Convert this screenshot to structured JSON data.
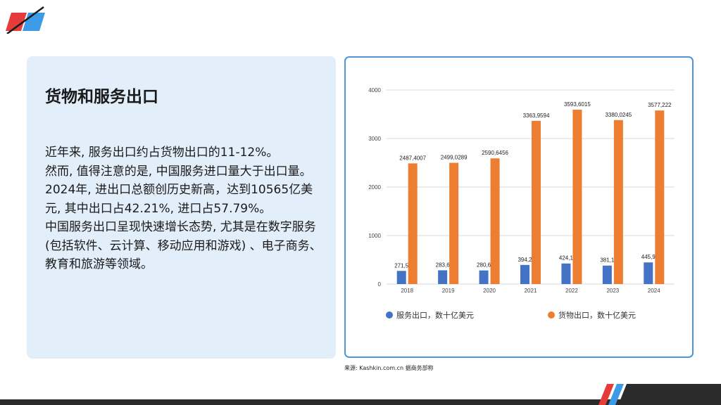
{
  "panel": {
    "title": "货物和服务出口",
    "paragraphs": [
      "近年来, 服务出口约占货物出口的11-12%。",
      "然而, 值得注意的是, 中国服务进口量大于出口量。2024年, 进出口总额创历史新高，达到10565亿美元, 其中出口占42.21%, 进口占57.79%。",
      "中国服务出口呈现快速增长态势, 尤其是在数字服务 (包括软件、云计算、移动应用和游戏) 、电子商务、教育和旅游等领域。"
    ]
  },
  "source": "来源: Kashkin.com.cn 据商务部称",
  "colors": {
    "services": "#4472c4",
    "goods": "#ed7d31",
    "panel_bg": "#e3eefb",
    "chart_border": "#4b95d8"
  },
  "chart_data": {
    "type": "bar",
    "title": "",
    "xlabel": "",
    "ylabel": "",
    "categories": [
      "2018",
      "2019",
      "2020",
      "2021",
      "2022",
      "2023",
      "2024"
    ],
    "ylim": [
      0,
      4000
    ],
    "yticks": [
      0,
      1000,
      2000,
      3000,
      4000
    ],
    "grid": true,
    "legend_position": "bottom",
    "series": [
      {
        "name": "服务出口，数十亿美元",
        "color": "#4472c4",
        "values": [
          271.5,
          283.6,
          280.6,
          394.2,
          424.1,
          381.1,
          445.9
        ],
        "labels": [
          "271,5",
          "283,6",
          "280,6",
          "394,2",
          "424,1",
          "381,1",
          "445,9"
        ]
      },
      {
        "name": "货物出口，数十亿美元",
        "color": "#ed7d31",
        "values": [
          2487.4007,
          2499.0289,
          2590.6456,
          3363.9594,
          3593.6015,
          3380.0245,
          3577.222
        ],
        "labels": [
          "2487,4007",
          "2499,0289",
          "2590,6456",
          "3363,9594",
          "3593,6015",
          "3380,0245",
          "3577,222"
        ]
      }
    ]
  }
}
